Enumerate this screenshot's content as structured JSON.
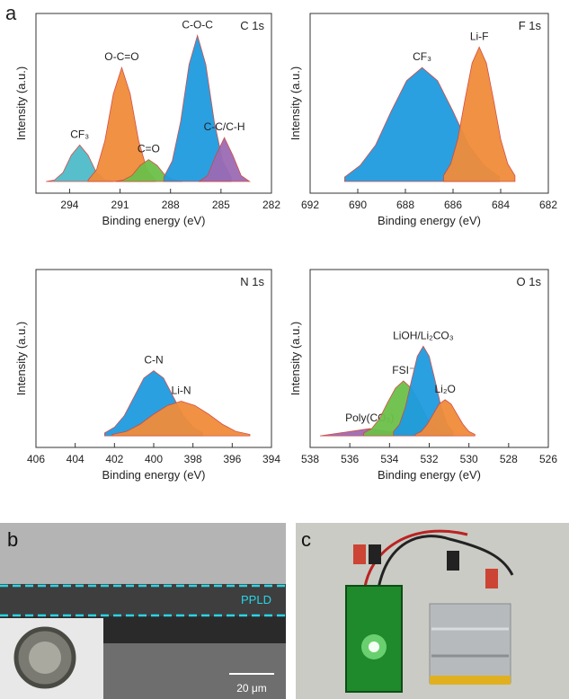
{
  "panels": {
    "a": "a",
    "b": "b",
    "c": "c"
  },
  "images": {
    "band_label": "PPLD",
    "scale_bar": "20 μm"
  },
  "chart_data": [
    {
      "type": "area",
      "title": "C 1s",
      "xlabel": "Binding energy (eV)",
      "ylabel": "Intensity (a.u.)",
      "xlim": [
        296,
        282
      ],
      "xticks": [
        294,
        291,
        288,
        285,
        282
      ],
      "ylim": [
        -8,
        115
      ],
      "series": [
        {
          "name": "CF₃",
          "color": "#4fbcc9",
          "x": [
            295.4,
            294.9,
            294.4,
            293.9,
            293.4,
            292.9,
            292.4,
            291.9,
            291.4
          ],
          "values": [
            0,
            1,
            6,
            18,
            25,
            18,
            6,
            1,
            0
          ]
        },
        {
          "name": "O-C=O",
          "color": "#f08c3a",
          "x": [
            292.9,
            292.4,
            291.9,
            291.4,
            290.9,
            290.4,
            289.9,
            289.4,
            288.9
          ],
          "values": [
            1,
            8,
            28,
            60,
            78,
            60,
            28,
            8,
            1
          ]
        },
        {
          "name": "C=O",
          "color": "#6cc04a",
          "x": [
            291.3,
            290.8,
            290.3,
            289.8,
            289.3,
            288.8,
            288.3,
            287.8,
            287.3
          ],
          "values": [
            0,
            1,
            4,
            11,
            15,
            11,
            4,
            1,
            0
          ]
        },
        {
          "name": "C-O-C",
          "color": "#1f9be0",
          "x": [
            288.4,
            287.9,
            287.4,
            286.9,
            286.4,
            285.9,
            285.4,
            284.9,
            284.4
          ],
          "values": [
            3,
            14,
            41,
            80,
            100,
            80,
            41,
            14,
            3
          ]
        },
        {
          "name": "C-C/C-H",
          "color": "#9b6bb5",
          "x": [
            286.3,
            285.8,
            285.3,
            284.8,
            284.3,
            283.8,
            283.3
          ],
          "values": [
            0,
            4,
            18,
            30,
            18,
            4,
            0
          ]
        }
      ]
    },
    {
      "type": "area",
      "title": "F 1s",
      "xlabel": "Binding energy (eV)",
      "ylabel": "Intensity (a.u.)",
      "xlim": [
        692,
        682
      ],
      "xticks": [
        692,
        690,
        688,
        686,
        684,
        682
      ],
      "ylim": [
        -8,
        115
      ],
      "series": [
        {
          "name": "CF₃",
          "color": "#1f9be0",
          "x": [
            690.55,
            689.9,
            689.25,
            688.6,
            687.95,
            687.3,
            686.65,
            686.0,
            685.35,
            684.7,
            684.05
          ],
          "values": [
            3,
            11,
            25,
            48,
            69,
            78,
            69,
            48,
            25,
            11,
            3
          ]
        },
        {
          "name": "Li-F",
          "color": "#f08c3a",
          "x": [
            686.4,
            686.1,
            685.8,
            685.5,
            685.2,
            684.9,
            684.6,
            684.3,
            684.0,
            683.7,
            683.4
          ],
          "values": [
            4,
            12,
            29,
            56,
            81,
            92,
            81,
            56,
            29,
            12,
            4
          ]
        }
      ]
    },
    {
      "type": "area",
      "title": "N 1s",
      "xlabel": "Binding energy (eV)",
      "ylabel": "Intensity (a.u.)",
      "xlim": [
        406,
        394
      ],
      "xticks": [
        406,
        404,
        402,
        400,
        398,
        396,
        394
      ],
      "ylim": [
        -8,
        115
      ],
      "series": [
        {
          "name": "C-N",
          "color": "#1f9be0",
          "x": [
            402.5,
            402,
            401.5,
            401,
            400.5,
            400,
            399.5,
            399,
            398.5,
            398,
            397.5
          ],
          "values": [
            2,
            6,
            14,
            27,
            40,
            45,
            40,
            27,
            14,
            6,
            2
          ]
        },
        {
          "name": "Li-N",
          "color": "#f08c3a",
          "x": [
            402.1,
            401.4,
            400.7,
            400,
            399.3,
            398.6,
            397.9,
            397.2,
            396.5,
            395.8,
            395.1
          ],
          "values": [
            1,
            3,
            8,
            15,
            21,
            24,
            21,
            15,
            8,
            3,
            1
          ]
        }
      ]
    },
    {
      "type": "area",
      "title": "O 1s",
      "xlabel": "Binding energy (eV)",
      "ylabel": "Intensity (a.u.)",
      "xlim": [
        538,
        526
      ],
      "xticks": [
        538,
        536,
        534,
        532,
        530,
        528,
        526
      ],
      "ylim": [
        -8,
        115
      ],
      "series": [
        {
          "name": "Poly(CO₃)",
          "color": "#9b6bb5",
          "x": [
            537.5,
            537,
            536.5,
            536,
            535.5,
            535,
            534.5,
            534,
            533.5,
            533,
            532.5
          ],
          "values": [
            0,
            1,
            2,
            3,
            4,
            5,
            4,
            3,
            2,
            1,
            0
          ]
        },
        {
          "name": "FSI⁻",
          "color": "#6cc04a",
          "x": [
            535.3,
            534.9,
            534.5,
            534.1,
            533.7,
            533.3,
            532.9,
            532.5,
            532.1,
            531.7,
            531.3
          ],
          "values": [
            2,
            5,
            12,
            23,
            33,
            38,
            33,
            23,
            12,
            5,
            2
          ]
        },
        {
          "name": "LiOH/Li₂CO₃",
          "color": "#1f9be0",
          "x": [
            533.8,
            533.5,
            533.2,
            532.9,
            532.6,
            532.3,
            532.0,
            531.7,
            531.4,
            531.1,
            530.8
          ],
          "values": [
            3,
            8,
            20,
            38,
            55,
            62,
            55,
            38,
            20,
            8,
            3
          ]
        },
        {
          "name": "Li₂O",
          "color": "#f08c3a",
          "x": [
            532.7,
            532.4,
            532.1,
            531.8,
            531.5,
            531.2,
            530.9,
            530.6,
            530.3,
            530.0,
            529.7
          ],
          "values": [
            1,
            3,
            8,
            15,
            22,
            25,
            22,
            15,
            8,
            3,
            1
          ]
        }
      ]
    }
  ]
}
